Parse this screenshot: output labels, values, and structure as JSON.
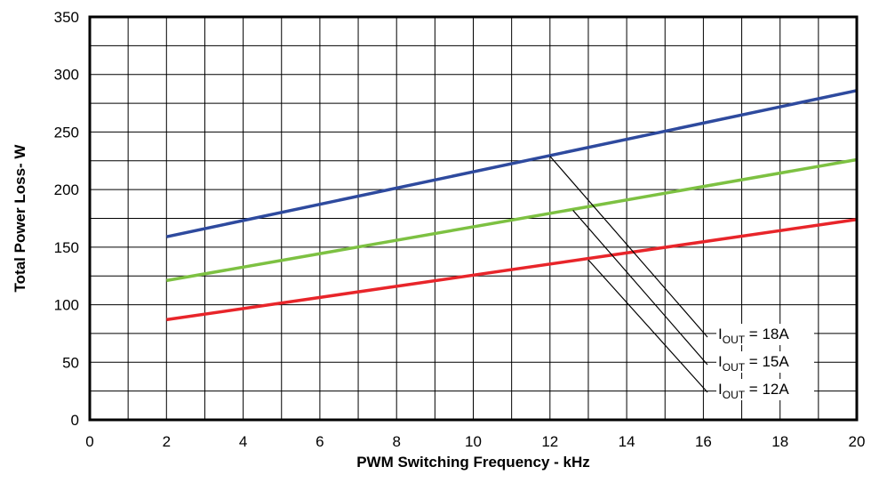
{
  "chart_data": {
    "type": "line",
    "title": "",
    "xlabel": "PWM Switching Frequency - kHz",
    "ylabel": "Total Power Loss- W",
    "xlim": [
      0,
      20
    ],
    "ylim": [
      0,
      350
    ],
    "xticks": [
      "0",
      "2",
      "4",
      "6",
      "8",
      "10",
      "12",
      "14",
      "16",
      "18",
      "20"
    ],
    "yticks": [
      "0",
      "50",
      "100",
      "150",
      "200",
      "250",
      "300",
      "350"
    ],
    "grid": true,
    "series": [
      {
        "name": "I_OUT = 18A",
        "color": "#2E4A9E",
        "x": [
          2,
          20
        ],
        "y": [
          159,
          286
        ]
      },
      {
        "name": "I_OUT = 15A",
        "color": "#7DC142",
        "x": [
          2,
          20
        ],
        "y": [
          121,
          226
        ]
      },
      {
        "name": "I_OUT = 12A",
        "color": "#E8252A",
        "x": [
          2,
          20
        ],
        "y": [
          87,
          174
        ]
      }
    ],
    "annotations": [
      {
        "series": 0,
        "label_main": "I",
        "label_sub": "OUT",
        "label_rest": " = 18A",
        "point": [
          12,
          229
        ]
      },
      {
        "series": 1,
        "label_main": "I",
        "label_sub": "OUT",
        "label_rest": " = 15A",
        "point": [
          12.6,
          182
        ]
      },
      {
        "series": 2,
        "label_main": "I",
        "label_sub": "OUT",
        "label_rest": " = 12A",
        "point": [
          13,
          139
        ]
      }
    ]
  }
}
